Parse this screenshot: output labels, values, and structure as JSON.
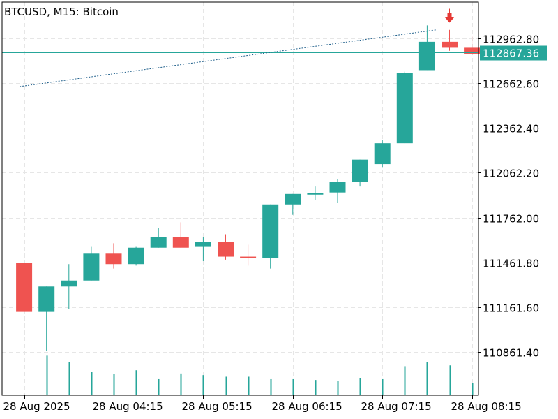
{
  "header": {
    "symbol": "BTCUSD",
    "timeframe": "M15",
    "title_line": "BTCUSD, M15:  Bitcoin"
  },
  "colors": {
    "bull": "#26a69a",
    "bear": "#ef5350",
    "grid": "#e6e6e6",
    "axis": "#000000",
    "price_line": "#26a69a",
    "trend_line": "#1f5f8b",
    "arrow": "#e53935",
    "volume": "#26a69a"
  },
  "chart_data": {
    "type": "candlestick",
    "title": "BTCUSD, M15:  Bitcoin",
    "ylim": [
      110650,
      113200
    ],
    "y_ticks": [
      110861.4,
      111161.6,
      111461.8,
      111762.0,
      112062.2,
      112362.4,
      112662.6,
      112962.8
    ],
    "y_tick_labels": [
      "110861.40",
      "111161.60",
      "111461.80",
      "111762.00",
      "112062.20",
      "112362.40",
      "112662.60",
      "112962.80"
    ],
    "x_tick_labels": [
      "28 Aug 2025",
      "28 Aug 04:15",
      "28 Aug 05:15",
      "28 Aug 06:15",
      "28 Aug 07:15",
      "28 Aug 08:15"
    ],
    "x_tick_indices": [
      0,
      4,
      8,
      12,
      16,
      20
    ],
    "current_price": 112867.36,
    "current_price_label": "112867.36",
    "candles": [
      {
        "o": 111460,
        "h": 111460,
        "l": 111130,
        "c": 111130
      },
      {
        "o": 111130,
        "h": 111300,
        "l": 110870,
        "c": 111300
      },
      {
        "o": 111300,
        "h": 111450,
        "l": 111150,
        "c": 111340
      },
      {
        "o": 111340,
        "h": 111570,
        "l": 111340,
        "c": 111520
      },
      {
        "o": 111520,
        "h": 111590,
        "l": 111420,
        "c": 111450
      },
      {
        "o": 111450,
        "h": 111570,
        "l": 111440,
        "c": 111560
      },
      {
        "o": 111560,
        "h": 111690,
        "l": 111560,
        "c": 111630
      },
      {
        "o": 111630,
        "h": 111730,
        "l": 111560,
        "c": 111560
      },
      {
        "o": 111570,
        "h": 111630,
        "l": 111470,
        "c": 111600
      },
      {
        "o": 111600,
        "h": 111650,
        "l": 111480,
        "c": 111500
      },
      {
        "o": 111500,
        "h": 111580,
        "l": 111440,
        "c": 111490
      },
      {
        "o": 111490,
        "h": 111850,
        "l": 111420,
        "c": 111850
      },
      {
        "o": 111850,
        "h": 111920,
        "l": 111780,
        "c": 111920
      },
      {
        "o": 111920,
        "h": 111970,
        "l": 111880,
        "c": 111920
      },
      {
        "o": 111930,
        "h": 112020,
        "l": 111860,
        "c": 112000
      },
      {
        "o": 112000,
        "h": 112150,
        "l": 111970,
        "c": 112150
      },
      {
        "o": 112120,
        "h": 112280,
        "l": 112100,
        "c": 112260
      },
      {
        "o": 112260,
        "h": 112740,
        "l": 112260,
        "c": 112730
      },
      {
        "o": 112750,
        "h": 113050,
        "l": 112750,
        "c": 112940
      },
      {
        "o": 112940,
        "h": 113020,
        "l": 112880,
        "c": 112900
      },
      {
        "o": 112900,
        "h": 112980,
        "l": 112850,
        "c": 112860
      }
    ],
    "volumes": [
      0,
      48,
      40,
      28,
      25,
      30,
      19,
      26,
      24,
      22,
      22,
      19,
      19,
      18,
      17,
      20,
      19,
      35,
      40,
      36,
      14
    ],
    "volume_max": 50,
    "trend_line": {
      "start_index": -0.2,
      "start_price": 112640,
      "end_index": 18.4,
      "end_price": 113020
    },
    "arrow_marker": {
      "index": 19,
      "price": 113040,
      "direction": "down"
    }
  }
}
